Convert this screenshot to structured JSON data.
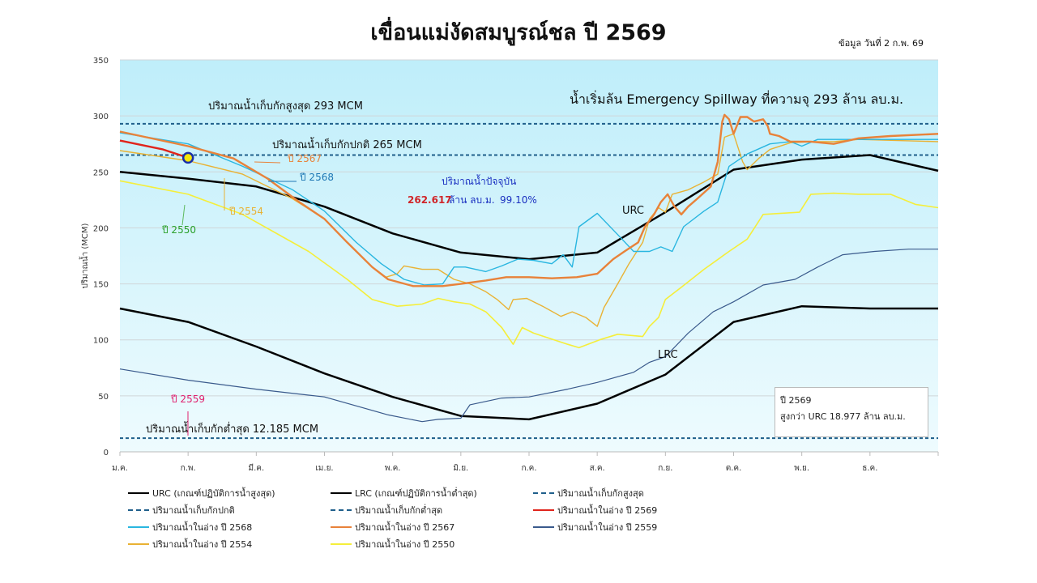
{
  "title": "เขื่อนแม่งัดสมบูรณ์ชล ปี 2569",
  "date_info": "ข้อมูล วันที่  2 ก.พ. 69",
  "chart_data": {
    "type": "line",
    "ylabel": "ปริมาณน้ำ (MCM)",
    "ylim": [
      0,
      350
    ],
    "yticks": [
      "0",
      "50",
      "100",
      "150",
      "200",
      "250",
      "300",
      "350"
    ],
    "xticks": [
      "ม.ค.",
      "ก.พ.",
      "มี.ค.",
      "เม.ย.",
      "พ.ค.",
      "มิ.ย.",
      "ก.ค.",
      "ส.ค.",
      "ก.ย.",
      "ต.ค.",
      "พ.ย.",
      "ธ.ค."
    ],
    "grid": true,
    "legend_position": "bottom",
    "reference_lines": [
      {
        "name": "ปริมาณน้ำเก็บกักสูงสุด",
        "value": 293,
        "color": "#1f5f8b",
        "label": "ปริมาณน้ำเก็บกักสูงสุด 293 MCM"
      },
      {
        "name": "ปริมาณน้ำเก็บกักปกติ",
        "value": 265,
        "color": "#1f5f8b",
        "label": "ปริมาณน้ำเก็บกักปกติ 265 MCM"
      },
      {
        "name": "ปริมาณน้ำเก็บกักต่ำสุด",
        "value": 12.185,
        "color": "#1f5f8b",
        "label": "ปริมาณน้ำเก็บกักต่ำสุด 12.185 MCM"
      }
    ],
    "series": [
      {
        "name": "URC (เกณฑ์ปฏิบัติการน้ำสูงสุด)",
        "color": "#000000",
        "width": 2.5,
        "points": [
          [
            "01-01",
            250
          ],
          [
            "02-01",
            244
          ],
          [
            "03-01",
            237
          ],
          [
            "04-01",
            219
          ],
          [
            "05-01",
            195
          ],
          [
            "06-01",
            178
          ],
          [
            "07-01",
            172
          ],
          [
            "08-01",
            178
          ],
          [
            "09-01",
            214
          ],
          [
            "10-01",
            252
          ],
          [
            "11-01",
            261
          ],
          [
            "12-01",
            265
          ],
          [
            "12-31",
            251
          ]
        ]
      },
      {
        "name": "LRC (เกณฑ์ปฏิบัติการน้ำต่ำสุด)",
        "color": "#000000",
        "width": 2.5,
        "points": [
          [
            "01-01",
            128
          ],
          [
            "02-01",
            116
          ],
          [
            "03-01",
            94
          ],
          [
            "04-01",
            70
          ],
          [
            "05-01",
            49
          ],
          [
            "06-01",
            32
          ],
          [
            "07-01",
            29
          ],
          [
            "08-01",
            43
          ],
          [
            "09-01",
            69
          ],
          [
            "10-01",
            116
          ],
          [
            "11-01",
            130
          ],
          [
            "12-01",
            128
          ],
          [
            "12-31",
            128
          ]
        ]
      },
      {
        "name": "ปริมาณน้ำในอ่าง ปี 2559",
        "color": "#3a5a8c",
        "width": 1.2,
        "points": [
          [
            "01-01",
            74
          ],
          [
            "02-01",
            64
          ],
          [
            "03-01",
            56
          ],
          [
            "04-01",
            49
          ],
          [
            "04-29",
            33
          ],
          [
            "05-14",
            27
          ],
          [
            "05-21",
            29
          ],
          [
            "06-01",
            30
          ],
          [
            "06-05",
            42
          ],
          [
            "06-19",
            48
          ],
          [
            "07-01",
            49
          ],
          [
            "07-18",
            56
          ],
          [
            "08-01",
            62
          ],
          [
            "08-17",
            71
          ],
          [
            "08-24",
            80
          ],
          [
            "09-01",
            85
          ],
          [
            "09-11",
            106
          ],
          [
            "09-22",
            125
          ],
          [
            "10-01",
            134
          ],
          [
            "10-14",
            149
          ],
          [
            "10-28",
            154
          ],
          [
            "11-08",
            165
          ],
          [
            "11-19",
            176
          ],
          [
            "12-03",
            179
          ],
          [
            "12-18",
            181
          ],
          [
            "12-31",
            181
          ]
        ]
      },
      {
        "name": "ปริมาณน้ำในอ่าง ปี 2550",
        "color": "#f5ee3a",
        "width": 1.6,
        "points": [
          [
            "01-01",
            242
          ],
          [
            "02-01",
            230
          ],
          [
            "02-25",
            212
          ],
          [
            "03-24",
            179
          ],
          [
            "04-11",
            154
          ],
          [
            "04-22",
            136
          ],
          [
            "05-03",
            130
          ],
          [
            "05-14",
            132
          ],
          [
            "05-21",
            137
          ],
          [
            "05-28",
            134
          ],
          [
            "06-05",
            132
          ],
          [
            "06-12",
            125
          ],
          [
            "06-19",
            111
          ],
          [
            "06-24",
            96
          ],
          [
            "06-28",
            111
          ],
          [
            "07-03",
            106
          ],
          [
            "07-18",
            96
          ],
          [
            "07-23",
            93
          ],
          [
            "08-02",
            100
          ],
          [
            "08-10",
            105
          ],
          [
            "08-21",
            103
          ],
          [
            "08-24",
            112
          ],
          [
            "08-28",
            120
          ],
          [
            "09-01",
            136
          ],
          [
            "09-08",
            147
          ],
          [
            "09-18",
            163
          ],
          [
            "09-29",
            179
          ],
          [
            "10-07",
            190
          ],
          [
            "10-14",
            212
          ],
          [
            "10-30",
            214
          ],
          [
            "11-05",
            230
          ],
          [
            "11-15",
            231
          ],
          [
            "11-26",
            230
          ],
          [
            "12-10",
            230
          ],
          [
            "12-21",
            221
          ],
          [
            "12-31",
            218
          ]
        ]
      },
      {
        "name": "ปริมาณน้ำในอ่าง ปี 2554",
        "color": "#e9b234",
        "width": 1.4,
        "points": [
          [
            "01-01",
            269
          ],
          [
            "02-01",
            260
          ],
          [
            "02-25",
            248
          ],
          [
            "03-17",
            226
          ],
          [
            "04-01",
            208
          ],
          [
            "04-15",
            179
          ],
          [
            "04-22",
            165
          ],
          [
            "04-28",
            156
          ],
          [
            "05-03",
            159
          ],
          [
            "05-06",
            166
          ],
          [
            "05-14",
            163
          ],
          [
            "05-21",
            163
          ],
          [
            "05-28",
            154
          ],
          [
            "06-05",
            150
          ],
          [
            "06-12",
            143
          ],
          [
            "06-17",
            136
          ],
          [
            "06-22",
            127
          ],
          [
            "06-24",
            136
          ],
          [
            "06-30",
            137
          ],
          [
            "07-07",
            130
          ],
          [
            "07-15",
            121
          ],
          [
            "07-20",
            125
          ],
          [
            "07-26",
            120
          ],
          [
            "08-01",
            112
          ],
          [
            "08-04",
            129
          ],
          [
            "08-10",
            150
          ],
          [
            "08-15",
            168
          ],
          [
            "08-21",
            187
          ],
          [
            "08-24",
            208
          ],
          [
            "08-28",
            218
          ],
          [
            "09-01",
            214
          ],
          [
            "09-04",
            230
          ],
          [
            "09-11",
            234
          ],
          [
            "09-18",
            241
          ],
          [
            "09-24",
            248
          ],
          [
            "09-27",
            281
          ],
          [
            "10-01",
            284
          ],
          [
            "10-05",
            259
          ],
          [
            "10-07",
            252
          ],
          [
            "10-12",
            262
          ],
          [
            "10-17",
            270
          ],
          [
            "10-26",
            276
          ],
          [
            "11-05",
            277
          ],
          [
            "11-15",
            277
          ],
          [
            "11-26",
            279
          ],
          [
            "12-31",
            277
          ]
        ]
      },
      {
        "name": "ปริมาณน้ำในอ่าง ปี 2568",
        "color": "#29b6e0",
        "width": 1.4,
        "points": [
          [
            "01-01",
            285
          ],
          [
            "02-01",
            275
          ],
          [
            "02-25",
            255
          ],
          [
            "03-17",
            234
          ],
          [
            "04-01",
            215
          ],
          [
            "04-15",
            187
          ],
          [
            "04-26",
            168
          ],
          [
            "05-06",
            154
          ],
          [
            "05-15",
            149
          ],
          [
            "05-23",
            150
          ],
          [
            "05-28",
            165
          ],
          [
            "06-03",
            165
          ],
          [
            "06-12",
            161
          ],
          [
            "06-19",
            166
          ],
          [
            "06-26",
            172
          ],
          [
            "07-03",
            171
          ],
          [
            "07-11",
            168
          ],
          [
            "07-16",
            176
          ],
          [
            "07-20",
            165
          ],
          [
            "07-23",
            201
          ],
          [
            "08-01",
            213
          ],
          [
            "08-10",
            194
          ],
          [
            "08-17",
            179
          ],
          [
            "08-24",
            179
          ],
          [
            "08-29",
            183
          ],
          [
            "09-04",
            179
          ],
          [
            "09-09",
            201
          ],
          [
            "09-18",
            215
          ],
          [
            "09-24",
            223
          ],
          [
            "09-29",
            255
          ],
          [
            "10-07",
            266
          ],
          [
            "10-17",
            275
          ],
          [
            "10-26",
            277
          ],
          [
            "11-01",
            273
          ],
          [
            "11-08",
            279
          ],
          [
            "12-31",
            279
          ]
        ]
      },
      {
        "name": "ปริมาณน้ำในอ่าง ปี 2567",
        "color": "#e8823a",
        "width": 2.4,
        "points": [
          [
            "01-01",
            286
          ],
          [
            "02-01",
            273
          ],
          [
            "02-21",
            262
          ],
          [
            "03-06",
            244
          ],
          [
            "03-20",
            223
          ],
          [
            "04-01",
            208
          ],
          [
            "04-11",
            187
          ],
          [
            "04-22",
            165
          ],
          [
            "04-29",
            154
          ],
          [
            "05-10",
            148
          ],
          [
            "05-17",
            148
          ],
          [
            "05-23",
            148
          ],
          [
            "06-01",
            150
          ],
          [
            "06-12",
            153
          ],
          [
            "06-21",
            156
          ],
          [
            "07-01",
            156
          ],
          [
            "07-11",
            155
          ],
          [
            "07-22",
            156
          ],
          [
            "08-01",
            159
          ],
          [
            "08-08",
            172
          ],
          [
            "08-13",
            179
          ],
          [
            "08-19",
            187
          ],
          [
            "08-22",
            201
          ],
          [
            "08-26",
            212
          ],
          [
            "08-29",
            223
          ],
          [
            "09-02",
            230
          ],
          [
            "09-05",
            219
          ],
          [
            "09-08",
            212
          ],
          [
            "09-11",
            219
          ],
          [
            "09-15",
            226
          ],
          [
            "09-21",
            237
          ],
          [
            "09-24",
            259
          ],
          [
            "09-26",
            295
          ],
          [
            "09-27",
            301
          ],
          [
            "09-29",
            297
          ],
          [
            "10-01",
            284
          ],
          [
            "10-04",
            299
          ],
          [
            "10-07",
            299
          ],
          [
            "10-10",
            295
          ],
          [
            "10-14",
            297
          ],
          [
            "10-16",
            291
          ],
          [
            "10-17",
            284
          ],
          [
            "10-21",
            282
          ],
          [
            "10-26",
            277
          ],
          [
            "11-05",
            277
          ],
          [
            "11-15",
            275
          ],
          [
            "11-26",
            280
          ],
          [
            "12-10",
            282
          ],
          [
            "12-31",
            284
          ]
        ]
      },
      {
        "name": "ปริมาณน้ำในอ่าง ปี 2569",
        "color": "#e0241c",
        "width": 2.4,
        "points": [
          [
            "01-01",
            278
          ],
          [
            "01-20",
            270
          ],
          [
            "02-01",
            262.617
          ]
        ]
      }
    ],
    "current_marker": {
      "date": "02-01",
      "value": 262.617,
      "fill": "#f5e60a",
      "stroke": "#1a2fa8"
    },
    "annotations": {
      "spillway": "น้ำเริ่มล้น Emergency Spillway ที่ความจุ 293 ล้าน ลบ.ม.",
      "current_title": "ปริมาณน้ำปัจจุบัน",
      "current_value": "262.617",
      "current_unit": "ล้าน ลบ.ม.",
      "current_percent": "99.10%",
      "urc_label": "URC",
      "lrc_label": "LRC",
      "y2567": "ปี 2567",
      "y2568": "ปี 2568",
      "y2554": "ปี 2554",
      "y2550": "ปี 2550",
      "y2559": "ปี 2559"
    },
    "note": {
      "line1": "ปี 2569",
      "line2": "สูงกว่า URC 18.977 ล้าน ลบ.ม."
    }
  },
  "legend": [
    {
      "label": "URC (เกณฑ์ปฏิบัติการน้ำสูงสุด)",
      "color": "#000000",
      "style": "solid"
    },
    {
      "label": "LRC (เกณฑ์ปฏิบัติการน้ำต่ำสุด)",
      "color": "#000000",
      "style": "solid"
    },
    {
      "label": "ปริมาณน้ำเก็บกักสูงสุด",
      "color": "#1f5f8b",
      "style": "dashed"
    },
    {
      "label": "ปริมาณน้ำเก็บกักปกติ",
      "color": "#1f5f8b",
      "style": "dashed"
    },
    {
      "label": "ปริมาณน้ำเก็บกักต่ำสุด",
      "color": "#1f5f8b",
      "style": "dashed"
    },
    {
      "label": "ปริมาณน้ำในอ่าง ปี 2569",
      "color": "#e0241c",
      "style": "solid"
    },
    {
      "label": "ปริมาณน้ำในอ่าง ปี 2568",
      "color": "#29b6e0",
      "style": "solid"
    },
    {
      "label": "ปริมาณน้ำในอ่าง ปี 2567",
      "color": "#e8823a",
      "style": "solid"
    },
    {
      "label": "ปริมาณน้ำในอ่าง ปี 2559",
      "color": "#3a5a8c",
      "style": "solid"
    },
    {
      "label": "ปริมาณน้ำในอ่าง ปี 2554",
      "color": "#e9b234",
      "style": "solid"
    },
    {
      "label": "ปริมาณน้ำในอ่าง ปี 2550",
      "color": "#f5ee3a",
      "style": "solid"
    }
  ]
}
